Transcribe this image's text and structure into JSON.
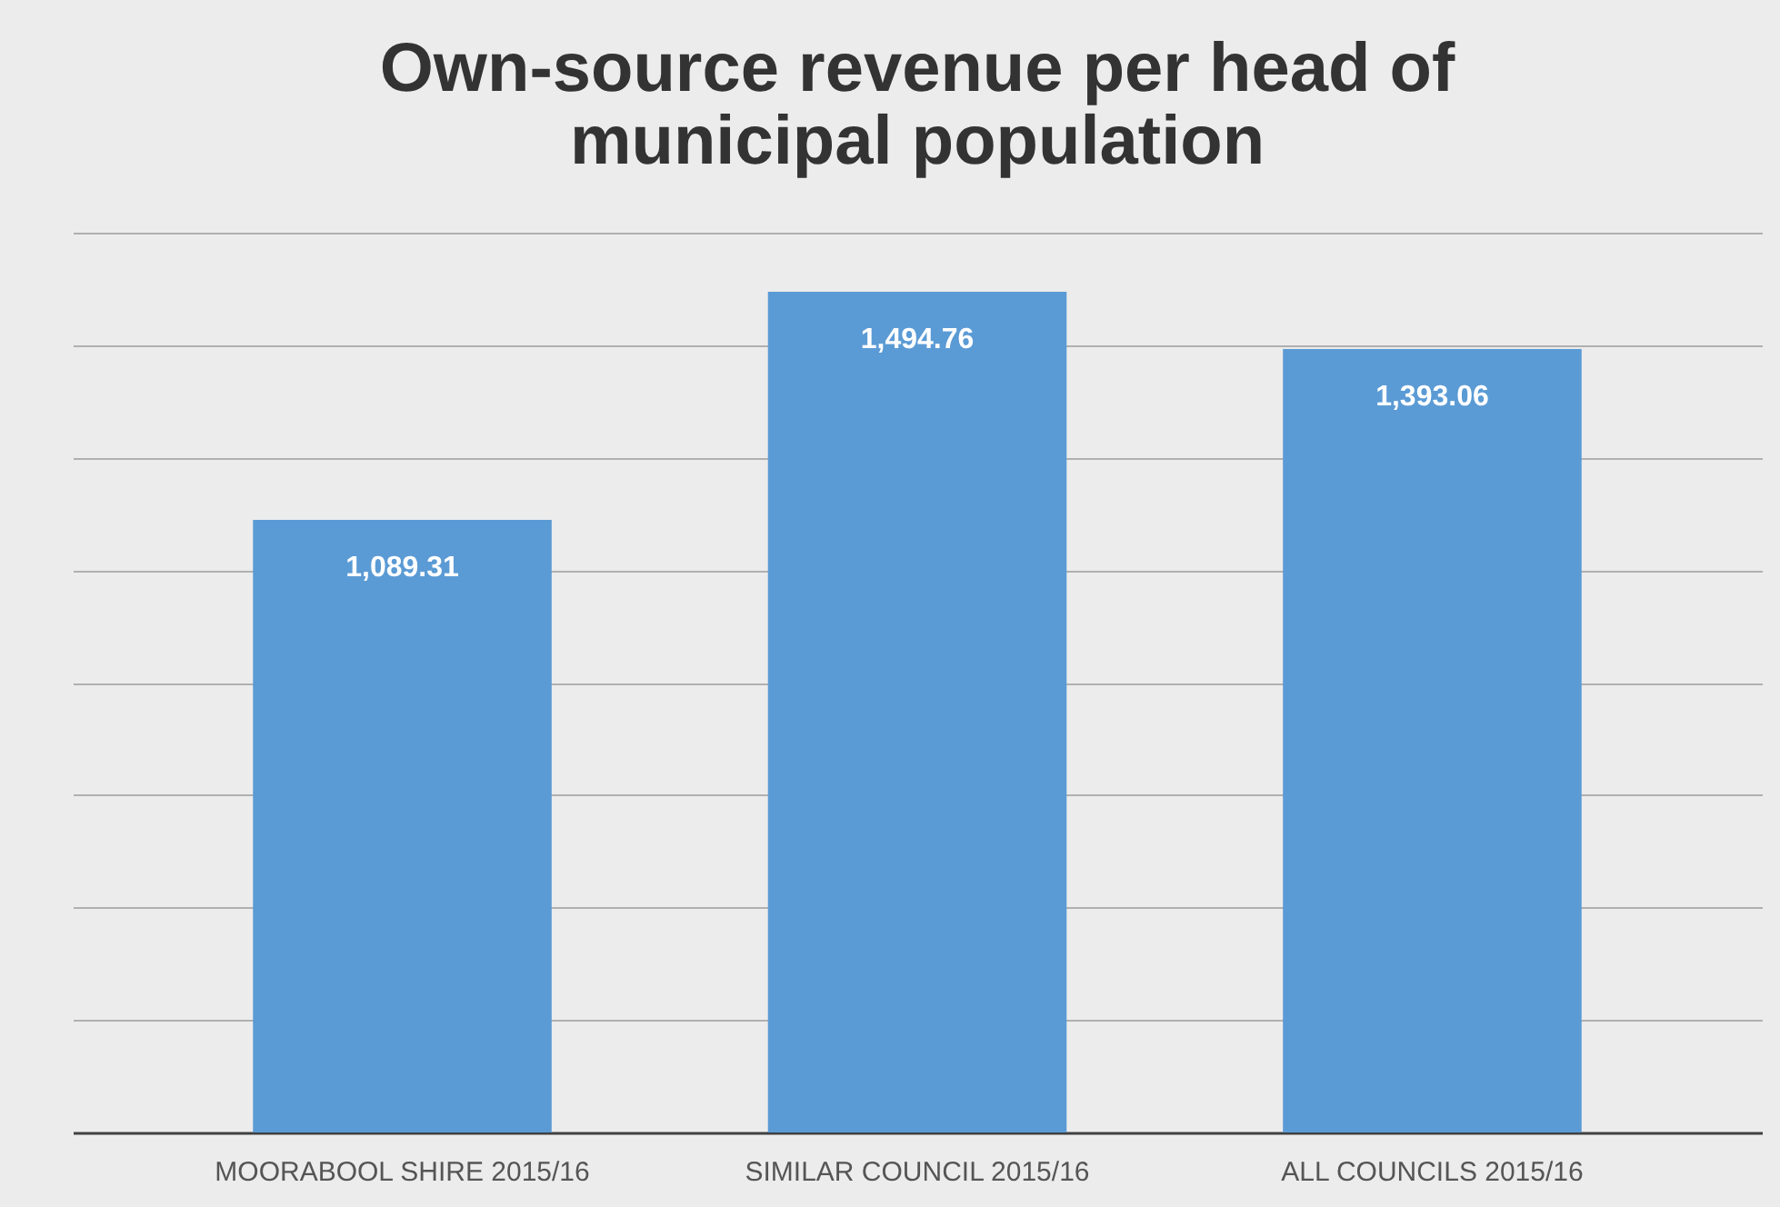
{
  "chart_data": {
    "type": "bar",
    "title": "Own-source revenue per head of\nmunicipal population",
    "categories": [
      "MOORABOOL SHIRE 2015/16",
      "SIMILAR COUNCIL 2015/16",
      "ALL COUNCILS 2015/16"
    ],
    "values": [
      1089.31,
      1494.76,
      1393.06
    ],
    "color": "#5b9bd5",
    "value_labels": [
      "1,089.31",
      "1,494.76",
      "1,393.06"
    ],
    "ylim": [
      0,
      1600
    ],
    "yticks": [
      {
        "value": 0,
        "label": null
      },
      {
        "value": 200,
        "label": null
      },
      {
        "value": 400,
        "label": null
      },
      {
        "value": 600,
        "label": null
      },
      {
        "value": 800,
        "label": null
      },
      {
        "value": 1000,
        "label": null
      },
      {
        "value": 1200,
        "label": null
      },
      {
        "value": 1400,
        "label": null
      },
      {
        "value": 1600,
        "label": null
      }
    ],
    "grid": "y",
    "tick_labels": "x"
  }
}
